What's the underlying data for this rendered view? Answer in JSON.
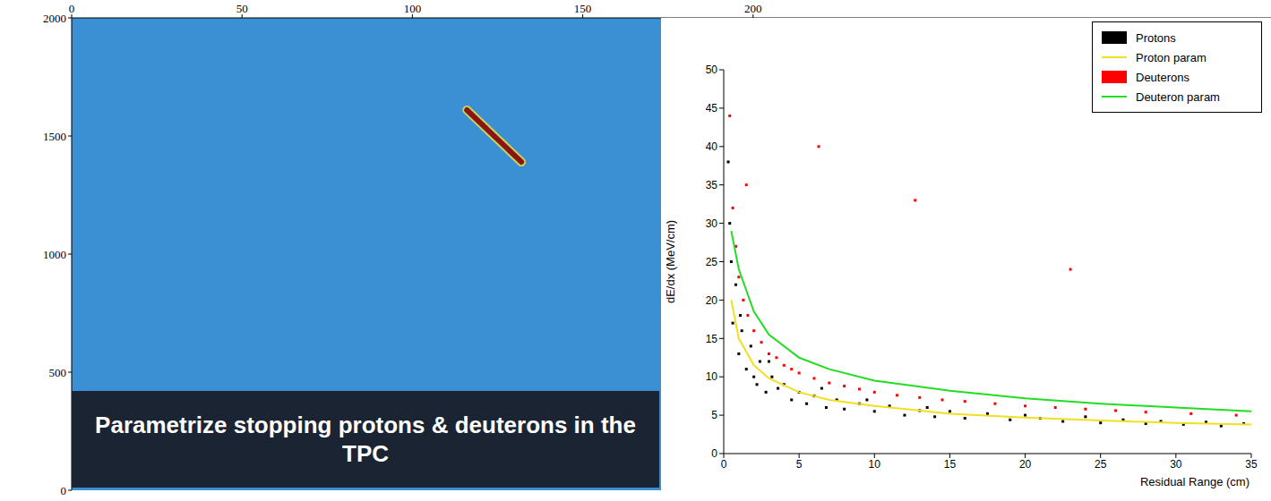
{
  "chart_data": [
    {
      "type": "line",
      "color": "#3b8fd3",
      "xlim": [
        0,
        352
      ],
      "xticks": [
        0,
        50,
        100,
        150,
        200
      ],
      "ylim": [
        0,
        2000
      ],
      "yticks": [
        0,
        500,
        1000,
        1500,
        2000
      ],
      "annotation": "Parametrize stopping protons & deuterons in the TPC",
      "series": [
        {
          "color": "#8b1414",
          "x": [
            116,
            132
          ],
          "values": [
            1610,
            1390
          ]
        }
      ]
    },
    {
      "type": "scatter",
      "x_label": "Residual Range (cm)",
      "y_label": "dE/dx (MeV/cm)",
      "xlim": [
        0,
        35
      ],
      "xticks": [
        0,
        5,
        10,
        15,
        20,
        25,
        30,
        35
      ],
      "ylim": [
        0,
        50
      ],
      "yticks": [
        0,
        5,
        10,
        15,
        20,
        25,
        30,
        35,
        40,
        45,
        50
      ],
      "legend": "top-right",
      "series": [
        {
          "name": "Protons",
          "type": "scatter",
          "color": "#000000",
          "x": [
            0.3,
            0.5,
            0.6,
            0.8,
            1.0,
            1.2,
            1.5,
            1.8,
            2.0,
            2.4,
            2.8,
            3.2,
            3.6,
            4.0,
            4.5,
            5.0,
            5.5,
            6.0,
            6.8,
            7.5,
            8.0,
            9.0,
            10.0,
            11.0,
            12.0,
            13.0,
            14.0,
            15.0,
            16.0,
            17.5,
            19.0,
            20.0,
            21.0,
            22.5,
            24.0,
            25.0,
            26.5,
            28.0,
            29.0,
            30.5,
            32.0,
            33.0,
            34.5,
            0.4,
            1.1,
            2.2,
            3.0,
            6.5,
            9.5,
            13.5
          ],
          "values": [
            38,
            25,
            17,
            22,
            13,
            16,
            11,
            14,
            10,
            12,
            8,
            10,
            8.5,
            9,
            7,
            8,
            6.5,
            7.5,
            6,
            7,
            5.8,
            6.5,
            5.5,
            6.2,
            5,
            5.6,
            4.8,
            5.5,
            4.6,
            5.2,
            4.4,
            5,
            4.6,
            4.2,
            4.8,
            4,
            4.4,
            3.9,
            4.2,
            3.8,
            4.1,
            3.6,
            3.9,
            30,
            18,
            9,
            12,
            8.5,
            7,
            6
          ]
        },
        {
          "name": "Proton param",
          "type": "line",
          "color": "#f0e020",
          "x": [
            0.5,
            1,
            2,
            3,
            5,
            7,
            10,
            15,
            20,
            25,
            30,
            35
          ],
          "values": [
            20,
            15,
            11.5,
            9.8,
            8,
            7,
            6.2,
            5.2,
            4.7,
            4.3,
            4,
            3.8
          ]
        },
        {
          "name": "Deuterons",
          "type": "scatter",
          "color": "#ff0000",
          "x": [
            0.4,
            0.6,
            0.8,
            1.0,
            1.3,
            1.6,
            2.0,
            2.5,
            3.0,
            3.5,
            4.0,
            4.5,
            5.0,
            6.0,
            7.0,
            8.0,
            9.0,
            10.0,
            11.5,
            13.0,
            14.5,
            16.0,
            18.0,
            20.0,
            22.0,
            24.0,
            26.0,
            28.0,
            31.0,
            34.0,
            6.3,
            12.7,
            1.5,
            23.0
          ],
          "values": [
            44,
            32,
            27,
            23,
            20,
            18,
            16,
            14.5,
            13,
            12.5,
            11.5,
            11,
            10.5,
            9.8,
            9.2,
            8.8,
            8.4,
            8,
            7.6,
            7.3,
            7,
            6.8,
            6.5,
            6.2,
            6,
            5.8,
            5.6,
            5.4,
            5.2,
            5,
            40,
            33,
            35,
            24
          ]
        },
        {
          "name": "Deuteron param",
          "type": "line",
          "color": "#22dd22",
          "x": [
            0.5,
            1,
            2,
            3,
            5,
            7,
            10,
            15,
            20,
            25,
            30,
            35
          ],
          "values": [
            29,
            24,
            18.5,
            15.5,
            12.5,
            11,
            9.5,
            8.2,
            7.2,
            6.5,
            6,
            5.5
          ]
        }
      ]
    }
  ]
}
